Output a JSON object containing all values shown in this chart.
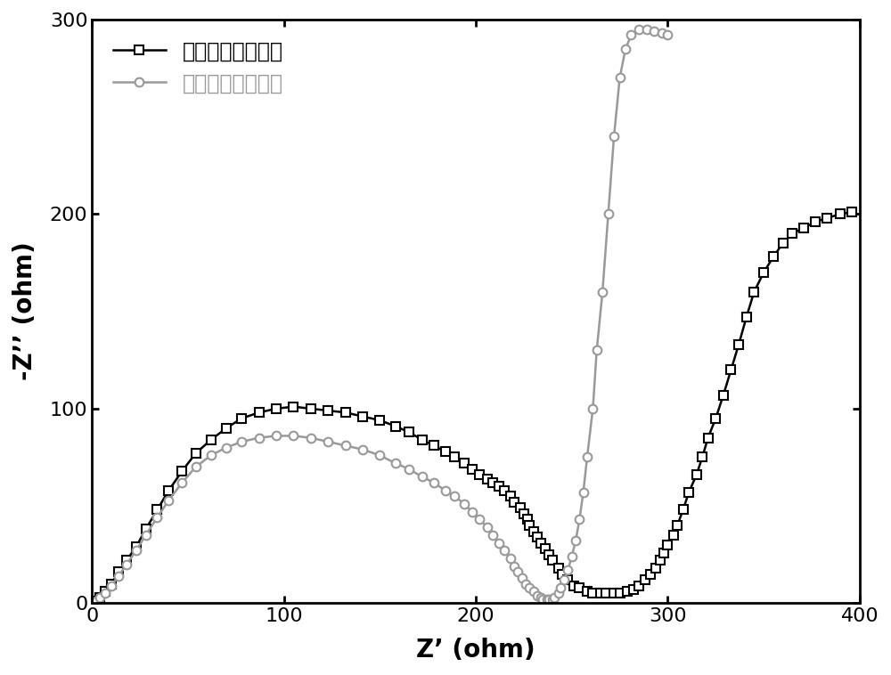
{
  "xlabel": "Z’ (ohm)",
  "ylabel": "-Z’’ (ohm)",
  "xlim": [
    0,
    400
  ],
  "ylim": [
    0,
    300
  ],
  "xticks": [
    0,
    100,
    200,
    300,
    400
  ],
  "yticks": [
    0,
    100,
    200,
    300
  ],
  "legend_label_black": "包覆前的磷酸铁锂",
  "legend_label_gray": "包覆后的磷酸铁锂",
  "color_black": "#000000",
  "color_gray": "#999999",
  "background_color": "#ffffff",
  "series_black_x": [
    0.5,
    2,
    4,
    7,
    10,
    14,
    18,
    23,
    28,
    34,
    40,
    47,
    54,
    62,
    70,
    78,
    87,
    96,
    105,
    114,
    123,
    132,
    141,
    150,
    158,
    165,
    172,
    178,
    184,
    189,
    194,
    198,
    202,
    206,
    209,
    212,
    215,
    218,
    220,
    223,
    225,
    227,
    228,
    230,
    232,
    234,
    236,
    238,
    240,
    243,
    245,
    248,
    251,
    254,
    258,
    261,
    265,
    268,
    272,
    275,
    279,
    282,
    285,
    288,
    291,
    294,
    296,
    298,
    300,
    303,
    305,
    308,
    311,
    315,
    318,
    321,
    325,
    329,
    333,
    337,
    341,
    345,
    350,
    355,
    360,
    365,
    371,
    377,
    383,
    390,
    396
  ],
  "series_black_y": [
    0,
    1,
    3,
    6,
    10,
    16,
    22,
    29,
    38,
    48,
    58,
    68,
    77,
    84,
    90,
    95,
    98,
    100,
    101,
    100,
    99,
    98,
    96,
    94,
    91,
    88,
    84,
    81,
    78,
    75,
    72,
    69,
    66,
    64,
    62,
    60,
    58,
    55,
    52,
    49,
    46,
    43,
    40,
    37,
    34,
    31,
    28,
    25,
    22,
    18,
    15,
    12,
    9,
    8,
    6,
    5,
    5,
    5,
    5,
    5,
    6,
    7,
    9,
    12,
    15,
    18,
    22,
    26,
    30,
    35,
    40,
    48,
    57,
    66,
    75,
    85,
    95,
    107,
    120,
    133,
    147,
    160,
    170,
    178,
    185,
    190,
    193,
    196,
    198,
    200,
    201
  ],
  "series_gray_x": [
    0.5,
    2,
    4,
    7,
    10,
    14,
    18,
    23,
    28,
    34,
    40,
    47,
    54,
    62,
    70,
    78,
    87,
    96,
    105,
    114,
    123,
    132,
    141,
    150,
    158,
    165,
    172,
    178,
    184,
    189,
    194,
    198,
    202,
    206,
    209,
    212,
    215,
    218,
    220,
    222,
    224,
    226,
    228,
    230,
    232,
    234,
    235,
    237,
    238,
    240,
    241,
    243,
    244,
    246,
    248,
    250,
    252,
    254,
    256,
    258,
    261,
    263,
    266,
    269,
    272,
    275,
    278,
    281,
    285,
    289,
    293,
    297,
    300
  ],
  "series_gray_y": [
    0,
    1,
    3,
    5,
    9,
    14,
    20,
    27,
    35,
    44,
    53,
    62,
    70,
    76,
    80,
    83,
    85,
    86,
    86,
    85,
    83,
    81,
    79,
    76,
    72,
    69,
    65,
    62,
    58,
    55,
    51,
    47,
    43,
    39,
    35,
    31,
    27,
    23,
    19,
    16,
    13,
    10,
    8,
    6,
    4,
    3,
    2,
    2,
    2,
    2,
    3,
    5,
    8,
    12,
    17,
    24,
    32,
    43,
    57,
    75,
    100,
    130,
    160,
    200,
    240,
    270,
    285,
    292,
    295,
    295,
    294,
    293,
    292
  ]
}
